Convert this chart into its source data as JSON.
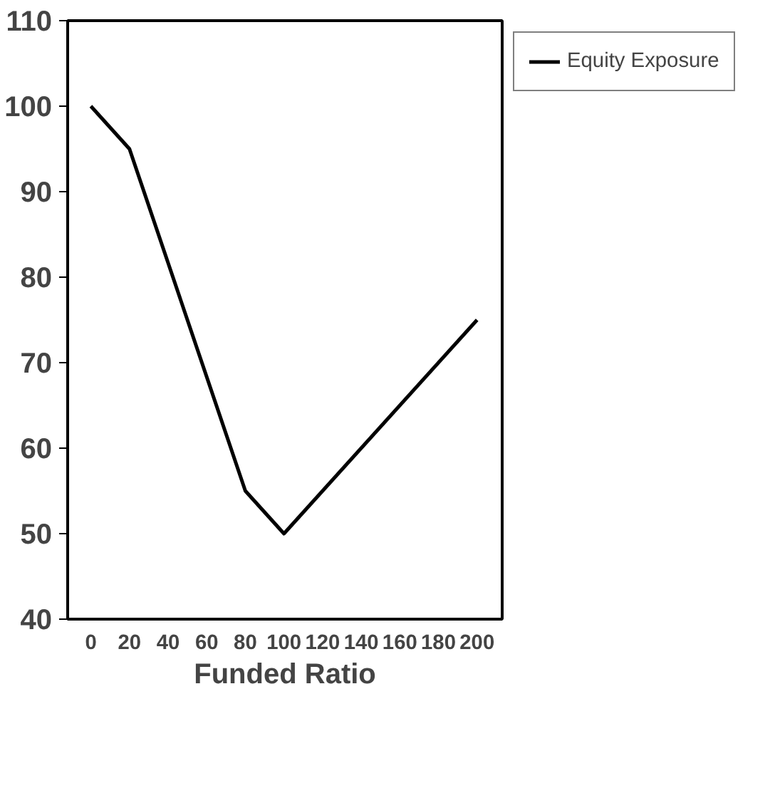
{
  "chart_data": {
    "type": "line",
    "xlabel": "Funded Ratio",
    "x": [
      0,
      20,
      80,
      100,
      200
    ],
    "series": [
      {
        "name": "Equity Exposure",
        "color": "#000000",
        "values": [
          100,
          95,
          55,
          50,
          75
        ]
      }
    ],
    "xlim": [
      -12,
      213
    ],
    "ylim": [
      40,
      110
    ],
    "xticks": [
      0,
      20,
      40,
      60,
      80,
      100,
      120,
      140,
      160,
      180,
      200
    ],
    "yticks": [
      40,
      50,
      60,
      70,
      80,
      90,
      100,
      110
    ],
    "grid": false,
    "legend": "right",
    "marker": "none",
    "line_style": "solid"
  }
}
